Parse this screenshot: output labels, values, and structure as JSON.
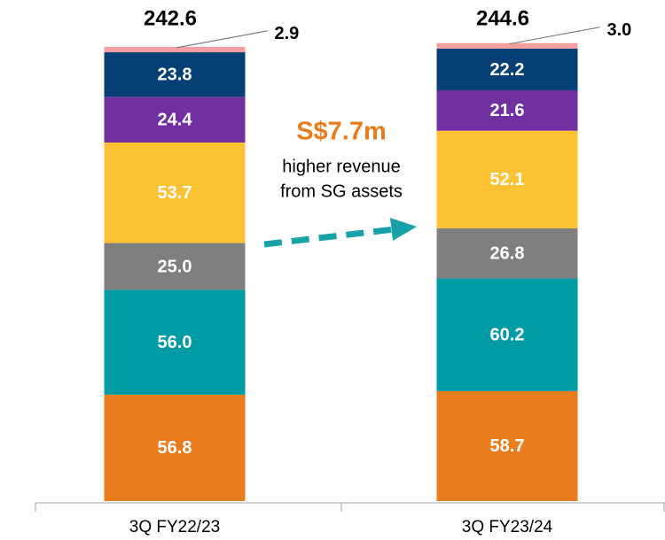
{
  "chart_data": {
    "type": "stacked_bar",
    "categories": [
      "3Q FY22/23",
      "3Q FY23/24"
    ],
    "series": [
      {
        "color": "#e97d1e",
        "values": [
          56.8,
          58.7
        ]
      },
      {
        "color": "#009ba5",
        "values": [
          56.0,
          60.2
        ],
        "value_labels": [
          "56.0",
          "60.2"
        ]
      },
      {
        "color": "#7f7f7f",
        "values": [
          25.0,
          26.8
        ],
        "value_labels": [
          "25.0",
          "26.8"
        ]
      },
      {
        "color": "#fdc134",
        "values": [
          53.7,
          52.1
        ]
      },
      {
        "color": "#7030a0",
        "values": [
          24.4,
          21.6
        ]
      },
      {
        "color": "#063f73",
        "values": [
          23.8,
          22.2
        ]
      },
      {
        "color": "#f4a0a0",
        "values": [
          2.9,
          3.0
        ],
        "value_labels": [
          "2.9",
          "3.0"
        ]
      }
    ],
    "totals": [
      242.6,
      244.6
    ],
    "annotation": {
      "headline": "S$7.7m",
      "lines": [
        "higher revenue",
        "from SG assets"
      ],
      "headline_color": "#e97d1e",
      "arrow_color": "#17a2a8"
    }
  }
}
